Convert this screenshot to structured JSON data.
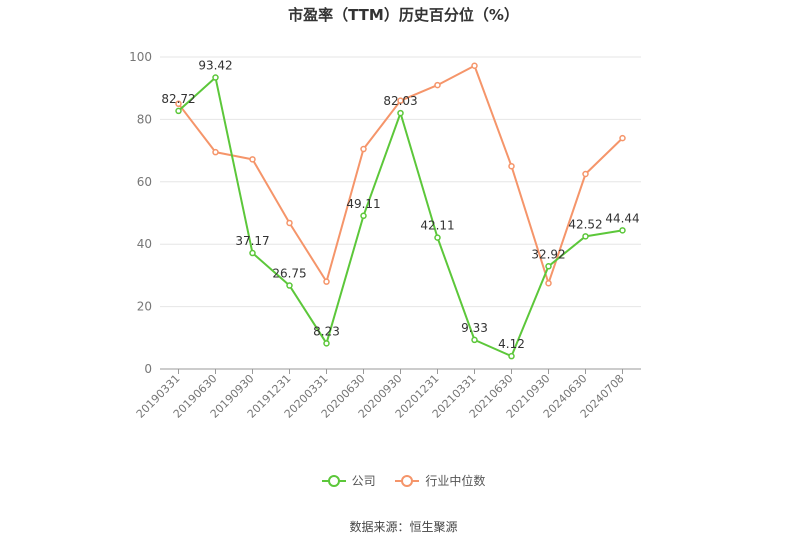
{
  "chart_data": {
    "type": "line",
    "title": "市盈率（TTM）历史百分位（%）",
    "categories": [
      "20190331",
      "20190630",
      "20190930",
      "20191231",
      "20200331",
      "20200630",
      "20200930",
      "20201231",
      "20210331",
      "20210630",
      "20210930",
      "20240630",
      "20240708"
    ],
    "ylim": [
      0,
      100
    ],
    "yticks": [
      0,
      20,
      40,
      60,
      80,
      100
    ],
    "grid": true,
    "legend_position": "bottom",
    "series": [
      {
        "name": "公司",
        "color": "#5cc73a",
        "values": [
          82.72,
          93.42,
          37.17,
          26.75,
          8.23,
          49.11,
          82.03,
          42.11,
          9.33,
          4.12,
          32.92,
          42.52,
          44.44
        ],
        "labels": [
          "82.72",
          "93.42",
          "37.17",
          "26.75",
          "8.23",
          "49.11",
          "82.03",
          "42.11",
          "9.33",
          "4.12",
          "32.92",
          "42.52",
          "44.44"
        ]
      },
      {
        "name": "行业中位数",
        "color": "#f5956a",
        "values": [
          85.0,
          69.5,
          67.2,
          46.8,
          28.0,
          70.5,
          86.0,
          91.0,
          97.2,
          65.0,
          27.5,
          62.5,
          74.0
        ]
      }
    ]
  },
  "source": "数据来源：恒生聚源"
}
